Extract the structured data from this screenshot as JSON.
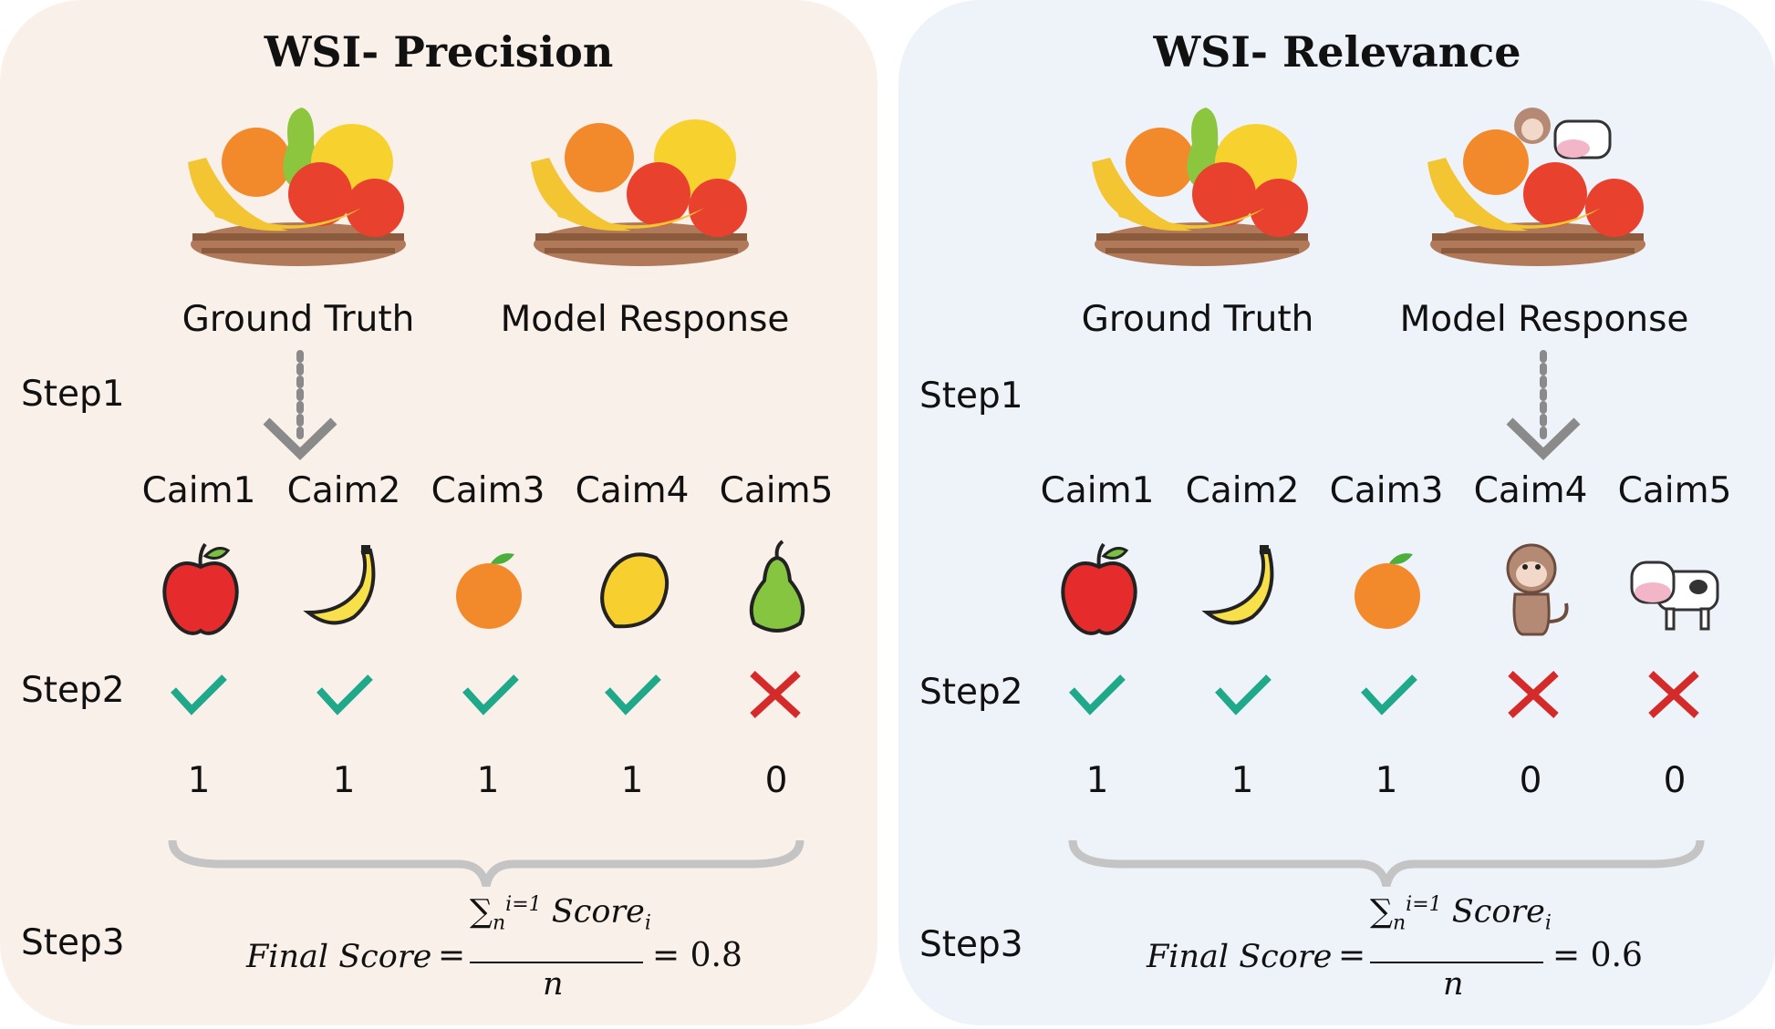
{
  "panels": [
    {
      "title": "WSI- Precision",
      "ground_truth_label": "Ground Truth",
      "model_response_label": "Model Response",
      "step1": "Step1",
      "step2": "Step2",
      "step3": "Step3",
      "claims": [
        "Caim1",
        "Caim2",
        "Caim3",
        "Caim4",
        "Caim5"
      ],
      "items": [
        "apple-icon",
        "banana-icon",
        "orange-icon",
        "mango-icon",
        "pear-icon"
      ],
      "marks": [
        "check",
        "check",
        "check",
        "check",
        "cross"
      ],
      "scores": [
        "1",
        "1",
        "1",
        "1",
        "0"
      ],
      "formula": {
        "label": "Final Score",
        "eq": "=",
        "numerator": "∑",
        "sup": "i=1",
        "sub": "n",
        "term": "Score",
        "term_sub": "i",
        "denominator": "n",
        "result": "= 0.8"
      }
    },
    {
      "title": "WSI- Relevance",
      "ground_truth_label": "Ground Truth",
      "model_response_label": "Model Response",
      "step1": "Step1",
      "step2": "Step2",
      "step3": "Step3",
      "claims": [
        "Caim1",
        "Caim2",
        "Caim3",
        "Caim4",
        "Caim5"
      ],
      "items": [
        "apple-icon",
        "banana-icon",
        "orange-icon",
        "monkey-icon",
        "cow-icon"
      ],
      "marks": [
        "check",
        "check",
        "check",
        "cross",
        "cross"
      ],
      "scores": [
        "1",
        "1",
        "1",
        "0",
        "0"
      ],
      "formula": {
        "label": "Final Score",
        "eq": "=",
        "numerator": "∑",
        "sup": "i=1",
        "sub": "n",
        "term": "Score",
        "term_sub": "i",
        "denominator": "n",
        "result": "= 0.6"
      }
    }
  ],
  "colors": {
    "check": "#1fa88a",
    "cross": "#d42a2a",
    "arrow": "#8a8a8a",
    "brace": "#c4c4c4"
  }
}
